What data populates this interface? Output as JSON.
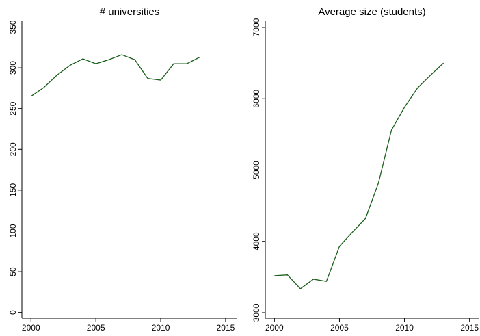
{
  "chart_data": [
    {
      "type": "line",
      "title": "# universities",
      "x": [
        2000,
        2001,
        2002,
        2003,
        2004,
        2005,
        2006,
        2007,
        2008,
        2009,
        2010,
        2011,
        2012,
        2013
      ],
      "series": [
        {
          "color": "#1a5e1a",
          "values": [
            265,
            276,
            291,
            303,
            311,
            305,
            310,
            316,
            310,
            287,
            285,
            305,
            305,
            313
          ]
        }
      ],
      "xlim": [
        1999.3,
        2015.9
      ],
      "xticks": [
        2000,
        2005,
        2010,
        2015
      ],
      "ylim": [
        -7,
        358
      ],
      "yticks": [
        0,
        50,
        100,
        150,
        200,
        250,
        300,
        350
      ]
    },
    {
      "type": "line",
      "title": "Average size (students)",
      "x": [
        2000,
        2001,
        2002,
        2003,
        2004,
        2005,
        2006,
        2007,
        2008,
        2009,
        2010,
        2011,
        2012,
        2013
      ],
      "series": [
        {
          "color": "#1a5e1a",
          "values": [
            3519,
            3530,
            3336,
            3470,
            3440,
            3930,
            4130,
            4320,
            4820,
            5560,
            5880,
            6150,
            6330,
            6500
          ]
        }
      ],
      "xlim": [
        1999.3,
        2015.7
      ],
      "xticks": [
        2000,
        2005,
        2010,
        2015
      ],
      "ylim": [
        2923,
        7096
      ],
      "yticks": [
        3000,
        4000,
        5000,
        6000,
        7000
      ]
    }
  ]
}
